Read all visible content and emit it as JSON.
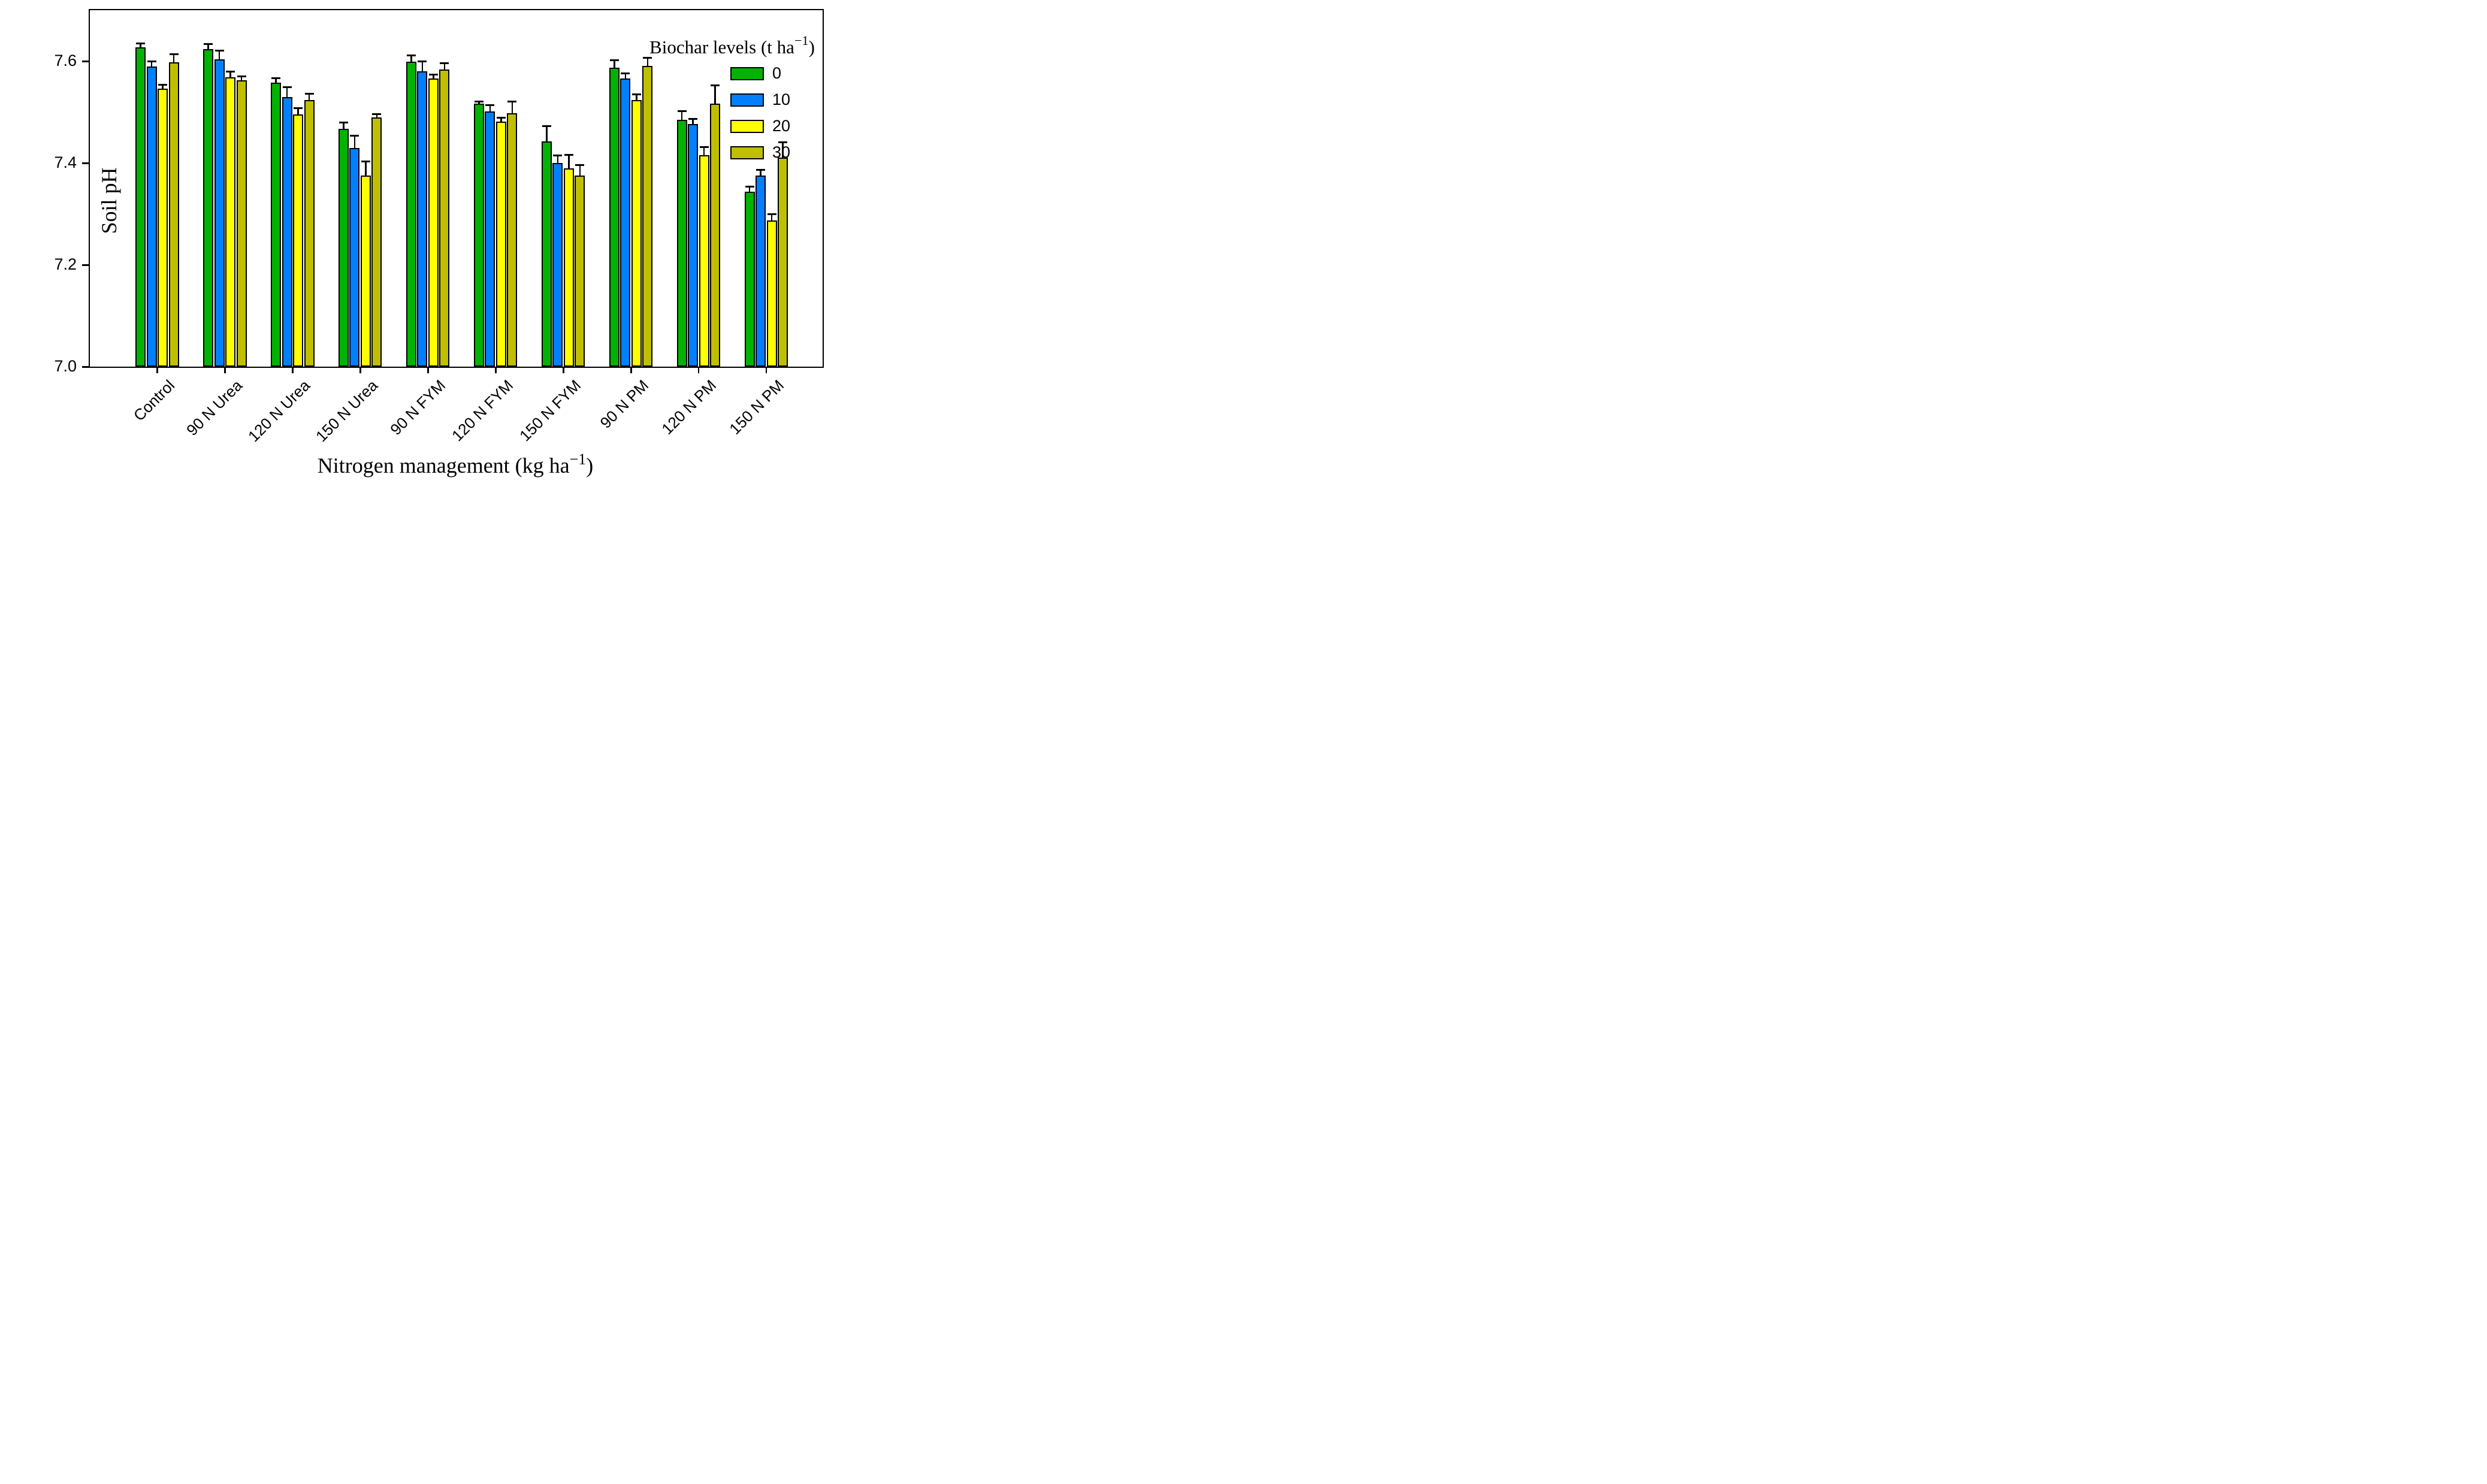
{
  "chart_data": {
    "type": "bar",
    "ylabel": "Soil pH",
    "xlabel_prefix": "Nitrogen management (kg ha",
    "xlabel_sup": "−1",
    "xlabel_suffix": ")",
    "legend_title_prefix": "Biochar levels (t ha",
    "legend_title_sup": "−1",
    "legend_title_suffix": ")",
    "legend_position": "upper-right",
    "grid": false,
    "error_bars": "upper",
    "ylim": [
      7.0,
      7.7
    ],
    "yticks": [
      7.0,
      7.2,
      7.4,
      7.6
    ],
    "categories": [
      "Control",
      "90 N Urea",
      "120 N Urea",
      "150 N Urea",
      "90 N FYM",
      "120 N FYM",
      "150 N FYM",
      "90 N PM",
      "120 N PM",
      "150 N PM"
    ],
    "series": [
      {
        "name": "0",
        "color": "#00b300",
        "values": [
          7.627,
          7.624,
          7.558,
          7.467,
          7.599,
          7.517,
          7.442,
          7.587,
          7.485,
          7.343
        ],
        "errors": [
          0.008,
          0.009,
          0.009,
          0.013,
          0.012,
          0.004,
          0.03,
          0.015,
          0.017,
          0.011
        ]
      },
      {
        "name": "10",
        "color": "#0080ff",
        "values": [
          7.59,
          7.603,
          7.53,
          7.43,
          7.58,
          7.501,
          7.4,
          7.566,
          7.477,
          7.375
        ],
        "errors": [
          0.01,
          0.018,
          0.019,
          0.024,
          0.019,
          0.012,
          0.015,
          0.01,
          0.01,
          0.011
        ]
      },
      {
        "name": "20",
        "color": "#ffff00",
        "values": [
          7.546,
          7.568,
          7.495,
          7.375,
          7.566,
          7.481,
          7.389,
          7.523,
          7.415,
          7.287
        ],
        "errors": [
          0.008,
          0.012,
          0.013,
          0.028,
          0.007,
          0.008,
          0.027,
          0.012,
          0.016,
          0.012
        ]
      },
      {
        "name": "30",
        "color": "#bfbf00",
        "values": [
          7.598,
          7.562,
          7.523,
          7.49,
          7.583,
          7.498,
          7.375,
          7.591,
          7.517,
          7.411
        ],
        "errors": [
          0.015,
          0.008,
          0.013,
          0.006,
          0.013,
          0.023,
          0.021,
          0.015,
          0.035,
          0.03
        ]
      }
    ]
  }
}
